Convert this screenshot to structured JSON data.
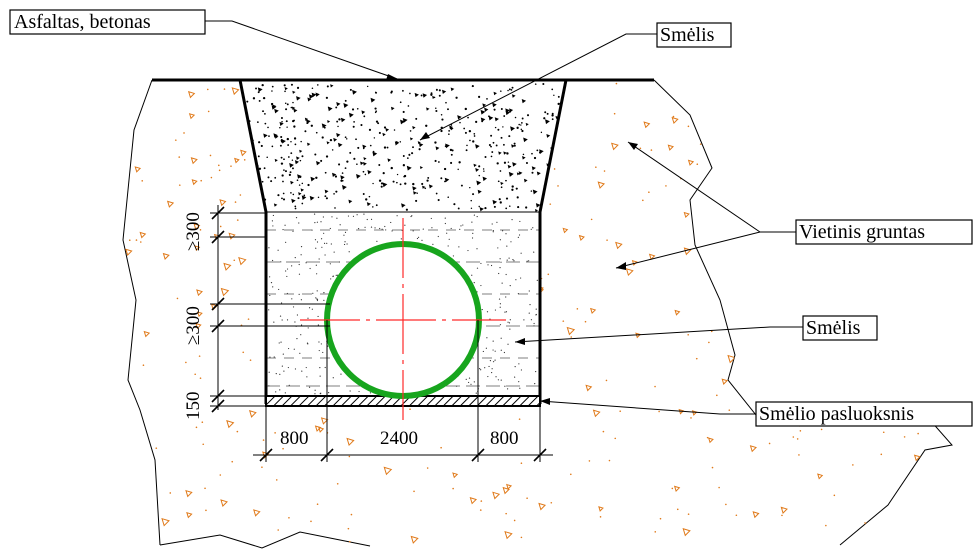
{
  "labels": {
    "asfaltas": "Asfaltas, betonas",
    "smelis_top": "Smėlis",
    "vietinis": "Vietinis gruntas",
    "smelis_mid": "Smėlis",
    "pasluoksnis": "Smėlio pasluoksnis"
  },
  "dimensions": {
    "cover_top": "≥300",
    "side_clear": "≥300",
    "bedding": "150",
    "left_width": "800",
    "pipe_width": "2400",
    "right_width": "800"
  },
  "colors": {
    "pipe": "#17a51d",
    "centerline": "#ff2a2a",
    "soil_speckle": "#e07a1a",
    "line": "#000000"
  }
}
